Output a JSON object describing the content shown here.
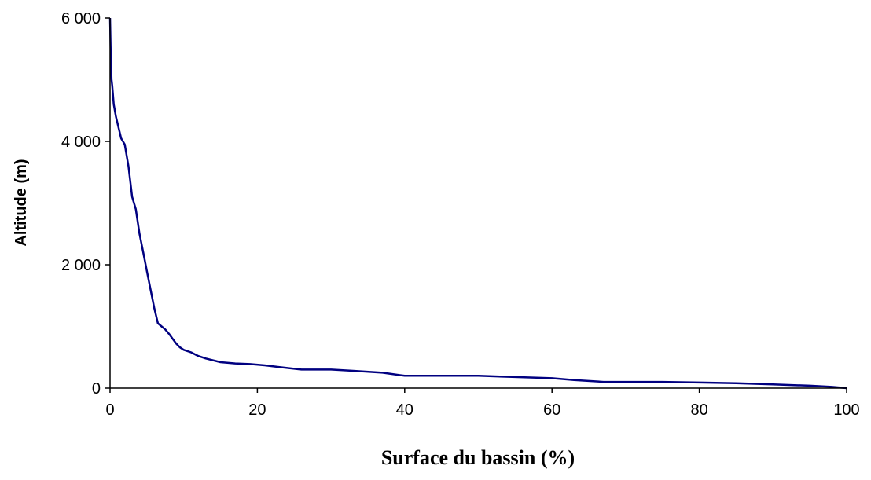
{
  "chart_data": {
    "type": "line",
    "xlabel": "Surface du bassin (%)",
    "ylabel": "Altitude (m)",
    "xlim": [
      0,
      100
    ],
    "ylim": [
      0,
      6000
    ],
    "x_ticks": [
      0,
      20,
      40,
      60,
      80,
      100
    ],
    "x_tick_labels": [
      "0",
      "20",
      "40",
      "60",
      "80",
      "100"
    ],
    "y_ticks": [
      0,
      2000,
      4000,
      6000
    ],
    "y_tick_labels": [
      "0",
      "2 000",
      "4 000",
      "6 000"
    ],
    "grid": false,
    "legend": "none",
    "line_color": "#000080",
    "series": [
      {
        "x": [
          0,
          0.1,
          0.2,
          0.3,
          0.5,
          0.8,
          1.0,
          1.5,
          2.0,
          2.5,
          3.0,
          3.5,
          4.0,
          4.5,
          5.0,
          5.5,
          6.0,
          6.5,
          7.0,
          7.5,
          8.0,
          8.5,
          9.0,
          9.5,
          10.0,
          11.0,
          12.0,
          13.0,
          15.0,
          17.0,
          19.0,
          21.0,
          23.0,
          26.0,
          30.0,
          33.0,
          37.0,
          40.0,
          45.0,
          50.0,
          55.0,
          60.0,
          63.0,
          67.0,
          70.0,
          75.0,
          80.0,
          85.0,
          90.0,
          95.0,
          98.0,
          100.0
        ],
        "y": [
          6000,
          5400,
          5000,
          4900,
          4600,
          4400,
          4300,
          4050,
          3950,
          3600,
          3100,
          2900,
          2500,
          2200,
          1900,
          1600,
          1300,
          1050,
          1000,
          950,
          880,
          800,
          720,
          660,
          620,
          580,
          520,
          480,
          420,
          400,
          390,
          370,
          340,
          300,
          300,
          280,
          250,
          200,
          200,
          200,
          180,
          160,
          130,
          100,
          100,
          100,
          90,
          80,
          60,
          40,
          20,
          0
        ]
      }
    ]
  }
}
